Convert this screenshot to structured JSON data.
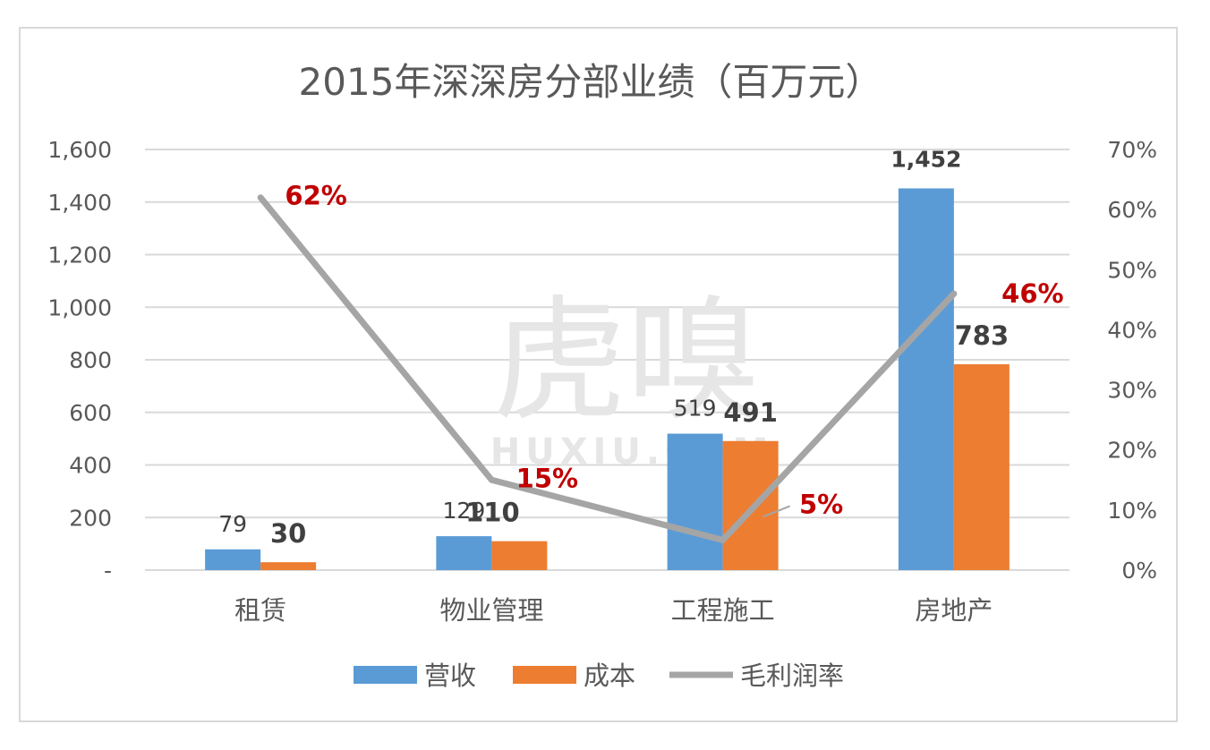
{
  "chart_data": {
    "type": "bar",
    "title": "2015年深深房分部业绩（百万元）",
    "categories": [
      "租赁",
      "物业管理",
      "工程施工",
      "房地产"
    ],
    "series": [
      {
        "name": "营收",
        "kind": "bar",
        "axis": "left",
        "color": "#5b9bd5",
        "values": [
          79,
          129,
          519,
          1452
        ],
        "labels": [
          "79",
          "129",
          "519",
          "1,452"
        ]
      },
      {
        "name": "成本",
        "kind": "bar",
        "axis": "left",
        "color": "#ed7d31",
        "values": [
          30,
          110,
          491,
          783
        ],
        "labels": [
          "30",
          "110",
          "491",
          "783"
        ]
      },
      {
        "name": "毛利润率",
        "kind": "line",
        "axis": "right",
        "color": "#a5a5a5",
        "values": [
          0.62,
          0.15,
          0.05,
          0.46
        ],
        "labels": [
          "62%",
          "15%",
          "5%",
          "46%"
        ]
      }
    ],
    "y_left": {
      "ylim": [
        0,
        1600
      ],
      "ticks": [
        0,
        200,
        400,
        600,
        800,
        1000,
        1200,
        1400,
        1600
      ],
      "tick_labels": [
        "-",
        "200",
        "400",
        "600",
        "800",
        "1,000",
        "1,200",
        "1,400",
        "1,600"
      ]
    },
    "y_right": {
      "ylim": [
        0,
        0.7
      ],
      "ticks": [
        0,
        0.1,
        0.2,
        0.3,
        0.4,
        0.5,
        0.6,
        0.7
      ],
      "tick_labels": [
        "0%",
        "10%",
        "20%",
        "30%",
        "40%",
        "50%",
        "60%",
        "70%"
      ]
    },
    "grid": true,
    "legend": "bottom",
    "label_colors": {
      "bar_label": "#404040",
      "line_label": "#c00000"
    }
  },
  "watermark": {
    "main": "虎嗅",
    "sub": "HUXIU.COM"
  }
}
